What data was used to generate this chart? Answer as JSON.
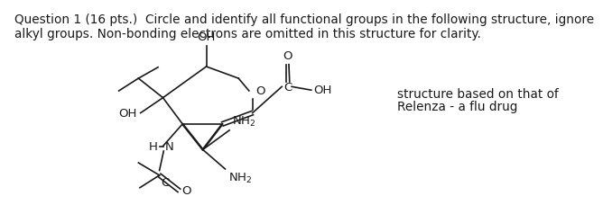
{
  "title_text": "Question 1 (16 pts.)  Circle and identify all functional groups in the following structure, ignore\nalkyl groups. Non-bonding electrons are omitted in this structure for clarity.",
  "side_note_line1": "structure based on that of",
  "side_note_line2": "Relenza - a flu drug",
  "bg_color": "#ffffff",
  "line_color": "#1a1a1a",
  "text_color": "#1a1a1a",
  "font_size_title": 9.8,
  "font_size_labels": 9.5,
  "font_size_note": 9.8
}
